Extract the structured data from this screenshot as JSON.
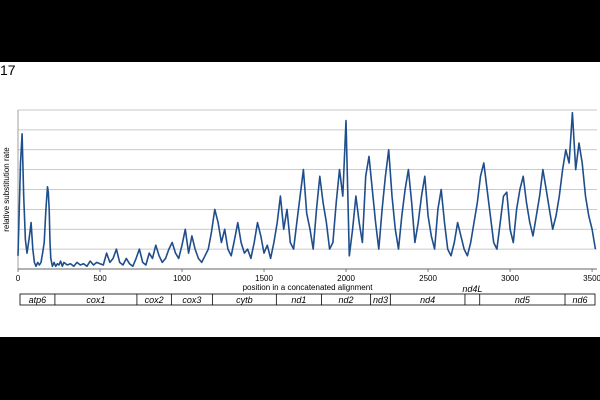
{
  "panel_label": "17",
  "chart_data": {
    "type": "line",
    "title": "",
    "xlabel": "position in a concatenated alignment",
    "ylabel": "relative substitution rate",
    "xlim": [
      0,
      3530
    ],
    "x_ticks": [
      0,
      500,
      1000,
      1500,
      2000,
      2500,
      3000,
      3500
    ],
    "y_gridlines": 8,
    "grid": true,
    "line_color": "#1f4e8c",
    "series": [
      {
        "x": [
          0,
          15,
          25,
          35,
          45,
          55,
          70,
          80,
          90,
          100,
          110,
          120,
          130,
          140,
          150,
          160,
          170,
          180,
          185,
          190,
          195,
          200,
          210,
          220,
          230,
          240,
          250,
          260,
          270,
          280,
          300,
          320,
          340,
          360,
          380,
          400,
          420,
          440,
          460,
          480,
          500,
          520,
          540,
          560,
          580,
          600,
          620,
          640,
          660,
          680,
          700,
          720,
          740,
          760,
          780,
          800,
          820,
          840,
          860,
          880,
          900,
          920,
          940,
          960,
          980,
          1000,
          1020,
          1040,
          1060,
          1080,
          1100,
          1120,
          1140,
          1160,
          1180,
          1200,
          1220,
          1240,
          1260,
          1280,
          1300,
          1320,
          1340,
          1360,
          1380,
          1400,
          1420,
          1440,
          1460,
          1480,
          1500,
          1520,
          1540,
          1560,
          1580,
          1600,
          1620,
          1640,
          1660,
          1680,
          1700,
          1720,
          1740,
          1760,
          1780,
          1800,
          1820,
          1840,
          1860,
          1880,
          1900,
          1920,
          1940,
          1960,
          1980,
          2000,
          2020,
          2040,
          2060,
          2080,
          2100,
          2120,
          2140,
          2160,
          2180,
          2200,
          2220,
          2240,
          2260,
          2280,
          2300,
          2320,
          2340,
          2360,
          2380,
          2400,
          2420,
          2440,
          2460,
          2480,
          2500,
          2520,
          2540,
          2560,
          2580,
          2600,
          2620,
          2640,
          2660,
          2680,
          2700,
          2720,
          2740,
          2760,
          2780,
          2800,
          2820,
          2840,
          2860,
          2880,
          2900,
          2920,
          2940,
          2960,
          2980,
          3000,
          3020,
          3040,
          3060,
          3080,
          3100,
          3120,
          3140,
          3160,
          3180,
          3200,
          3220,
          3240,
          3260,
          3280,
          3300,
          3320,
          3340,
          3360,
          3380,
          3400,
          3420,
          3440,
          3460,
          3480,
          3500,
          3520
        ],
        "y": [
          0.1,
          0.8,
          1.02,
          0.55,
          0.22,
          0.12,
          0.25,
          0.35,
          0.15,
          0.05,
          0.02,
          0.05,
          0.03,
          0.05,
          0.12,
          0.2,
          0.45,
          0.62,
          0.58,
          0.45,
          0.2,
          0.08,
          0.02,
          0.05,
          0.02,
          0.04,
          0.03,
          0.06,
          0.02,
          0.05,
          0.03,
          0.04,
          0.02,
          0.05,
          0.03,
          0.04,
          0.02,
          0.06,
          0.03,
          0.05,
          0.04,
          0.03,
          0.12,
          0.05,
          0.08,
          0.15,
          0.05,
          0.03,
          0.08,
          0.04,
          0.02,
          0.08,
          0.15,
          0.05,
          0.03,
          0.12,
          0.08,
          0.18,
          0.1,
          0.05,
          0.08,
          0.15,
          0.2,
          0.12,
          0.08,
          0.18,
          0.3,
          0.12,
          0.25,
          0.15,
          0.08,
          0.05,
          0.1,
          0.15,
          0.28,
          0.45,
          0.35,
          0.2,
          0.3,
          0.15,
          0.1,
          0.22,
          0.35,
          0.2,
          0.12,
          0.15,
          0.08,
          0.2,
          0.35,
          0.25,
          0.12,
          0.18,
          0.08,
          0.2,
          0.35,
          0.55,
          0.3,
          0.45,
          0.2,
          0.15,
          0.35,
          0.55,
          0.75,
          0.42,
          0.3,
          0.15,
          0.45,
          0.7,
          0.5,
          0.35,
          0.15,
          0.2,
          0.5,
          0.75,
          0.55,
          0.35,
          0.1,
          0.3,
          0.55,
          0.35,
          0.2,
          0.7,
          0.85,
          0.6,
          0.35,
          0.15,
          0.45,
          0.7,
          0.9,
          0.55,
          0.3,
          0.15,
          0.4,
          0.6,
          0.75,
          0.5,
          0.2,
          0.35,
          0.55,
          0.7,
          0.4,
          0.25,
          0.15,
          0.45,
          0.6,
          0.35,
          0.15,
          0.1,
          0.2,
          0.35,
          0.25,
          0.15,
          0.1,
          0.2,
          0.35,
          0.5,
          0.7,
          0.8,
          0.6,
          0.4,
          0.2,
          0.15,
          0.35,
          0.55,
          0.4,
          0.3,
          0.2,
          0.45,
          0.6,
          0.7,
          0.5,
          0.35,
          0.25,
          0.4,
          0.55,
          0.75,
          0.6,
          0.45,
          0.3,
          0.4,
          0.55,
          0.75,
          0.9,
          0.8,
          0.6,
          0.75,
          0.95,
          0.8,
          0.55,
          0.4,
          0.3,
          0.15
        ],
        "y_overrides": {
          "2000": 1.12,
          "1650": 0.72,
          "2980": 0.58,
          "3380": 1.18
        }
      }
    ],
    "genes": [
      {
        "name": "atp6",
        "start": 0,
        "end": 225
      },
      {
        "name": "cox1",
        "start": 225,
        "end": 725
      },
      {
        "name": "cox2",
        "start": 725,
        "end": 935
      },
      {
        "name": "cox3",
        "start": 935,
        "end": 1185
      },
      {
        "name": "cytb",
        "start": 1185,
        "end": 1575
      },
      {
        "name": "nd1",
        "start": 1575,
        "end": 1850
      },
      {
        "name": "nd2",
        "start": 1850,
        "end": 2150
      },
      {
        "name": "nd3",
        "start": 2150,
        "end": 2270
      },
      {
        "name": "nd4",
        "start": 2270,
        "end": 2725
      },
      {
        "name": "nd4L",
        "start": 2725,
        "end": 2815
      },
      {
        "name": "nd5",
        "start": 2815,
        "end": 3335
      },
      {
        "name": "nd6",
        "start": 3335,
        "end": 3530
      }
    ]
  }
}
